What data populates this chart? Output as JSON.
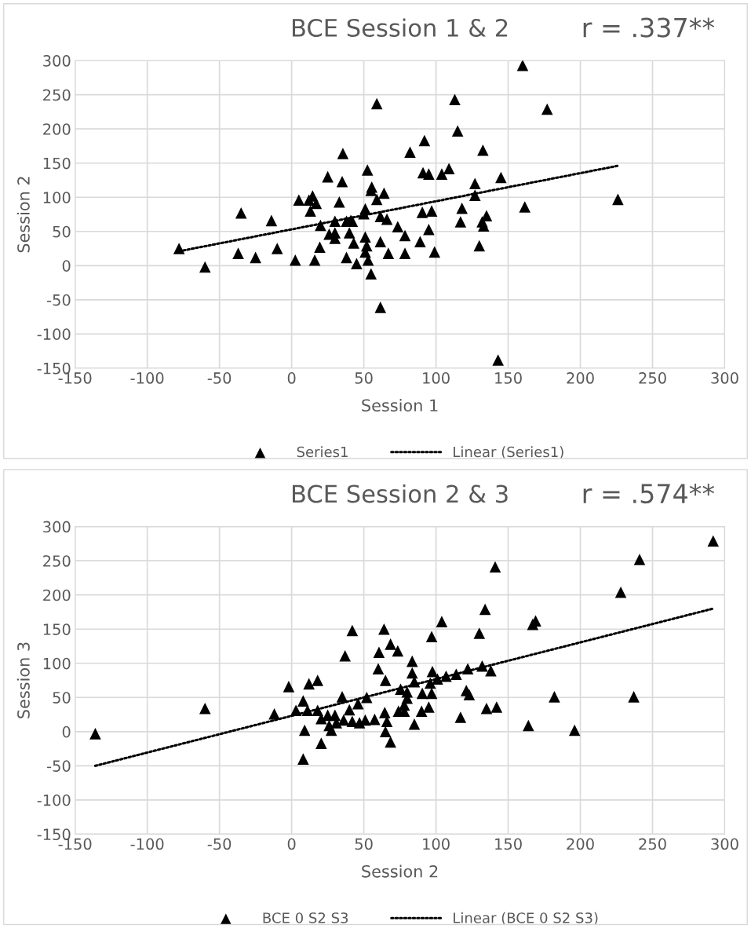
{
  "chart_data": [
    {
      "type": "scatter",
      "title": "BCE Session 1 & 2",
      "xlabel": "Session 1",
      "ylabel": "Session 2",
      "annotations": [
        "r = .337**"
      ],
      "xlim": [
        -150,
        300
      ],
      "ylim": [
        -150,
        300
      ],
      "xticks": [
        -150,
        -100,
        -50,
        0,
        50,
        100,
        150,
        200,
        250,
        300
      ],
      "yticks": [
        -150,
        -100,
        -50,
        0,
        50,
        100,
        150,
        200,
        250,
        300
      ],
      "grid": true,
      "legend": "bottom",
      "series": [
        {
          "name": "Series1",
          "marker": "triangle",
          "color": "#000000",
          "x": [
            -78,
            -60,
            -35,
            -37,
            -25,
            -14,
            -10,
            2.5,
            5,
            12,
            14.5,
            13,
            17,
            16,
            20,
            19.5,
            25,
            26,
            30,
            30,
            30,
            33,
            35,
            35.5,
            38,
            38,
            42,
            40,
            43,
            45,
            41,
            52.5,
            55.5,
            55,
            59,
            64,
            51,
            50,
            51,
            51,
            52,
            53,
            55,
            61.5,
            59,
            61.5,
            66,
            61.5,
            67,
            73.5,
            78.5,
            78.5,
            82,
            89,
            91,
            92,
            95,
            90.5,
            97,
            95,
            99,
            104,
            109,
            113,
            115,
            132.5,
            127,
            127,
            145,
            118,
            117,
            135,
            132,
            133,
            130,
            161.5,
            160,
            177,
            226,
            143
          ],
          "values": [
            25,
            -2,
            77,
            18,
            12,
            66,
            25,
            8,
            96,
            96,
            102,
            80,
            91,
            8,
            59,
            27,
            130,
            46,
            65,
            48,
            40,
            93,
            123,
            164,
            12,
            65,
            65,
            48,
            33,
            3,
            66,
            140,
            115,
            110,
            97,
            106,
            42,
            76,
            83,
            20,
            29,
            8,
            -12,
            -61,
            237,
            72,
            68,
            35,
            18,
            57,
            44,
            18,
            166,
            35,
            136,
            183,
            134,
            78,
            80,
            53,
            20,
            134,
            142,
            243,
            197,
            169,
            120,
            103,
            129,
            84,
            64,
            73,
            64,
            58,
            29,
            86,
            293,
            229,
            97,
            -138
          ]
        },
        {
          "name": "Linear (Series1)",
          "type": "line",
          "line_style": "dotted",
          "color": "#000000",
          "x": [
            -78,
            226
          ],
          "values": [
            21,
            146
          ]
        }
      ]
    },
    {
      "type": "scatter",
      "title": "BCE Session 2 & 3",
      "xlabel": "Session 2",
      "ylabel": "Session 3",
      "annotations": [
        "r = .574**"
      ],
      "xlim": [
        -150,
        300
      ],
      "ylim": [
        -150,
        300
      ],
      "xticks": [
        -150,
        -100,
        -50,
        0,
        50,
        100,
        150,
        200,
        250,
        300
      ],
      "yticks": [
        -150,
        -100,
        -50,
        0,
        50,
        100,
        150,
        200,
        250,
        300
      ],
      "grid": true,
      "legend": "bottom",
      "series": [
        {
          "name": "BCE 0 S2 S3",
          "marker": "triangle",
          "color": "#000000",
          "x": [
            -60,
            -136,
            -12,
            -2,
            3,
            8,
            8,
            9,
            11,
            12,
            18,
            18,
            20.5,
            20.5,
            25,
            26,
            27.5,
            30,
            31,
            35,
            36,
            37,
            40,
            42,
            42,
            46,
            47,
            51,
            52,
            57.5,
            60,
            60.5,
            64,
            65,
            64.5,
            66,
            65,
            68.5,
            68.5,
            73.5,
            75.5,
            74,
            78,
            80,
            80,
            78,
            83.5,
            83.5,
            85,
            85,
            90.5,
            90,
            95,
            97,
            97,
            97.5,
            96,
            104,
            101,
            107,
            114,
            122,
            132,
            138,
            121,
            123,
            117,
            135,
            142,
            130,
            134,
            141,
            167,
            169,
            164,
            182,
            196,
            228,
            241,
            237,
            292
          ],
          "values": [
            34,
            -3,
            26,
            66,
            31,
            45,
            -40,
            2,
            31,
            70,
            75,
            31,
            19,
            -17,
            24,
            9,
            2,
            24,
            13,
            51,
            17,
            111,
            32,
            148,
            15,
            41,
            13,
            17,
            50,
            18,
            92,
            116,
            150,
            75,
            28,
            15,
            0,
            -15,
            128,
            118,
            62,
            30,
            39,
            58,
            49,
            30,
            103,
            86,
            73,
            11,
            56,
            30,
            36,
            56,
            139,
            88,
            71,
            161,
            77,
            81,
            84,
            92,
            96,
            89,
            60,
            54,
            21,
            34,
            36,
            144,
            179,
            241,
            157,
            162,
            9,
            51,
            2,
            204,
            252,
            51,
            279
          ]
        },
        {
          "name": "Linear (BCE 0 S2 S3)",
          "type": "line",
          "line_style": "dotted",
          "color": "#000000",
          "x": [
            -136,
            292
          ],
          "values": [
            -50,
            180
          ]
        }
      ]
    }
  ]
}
